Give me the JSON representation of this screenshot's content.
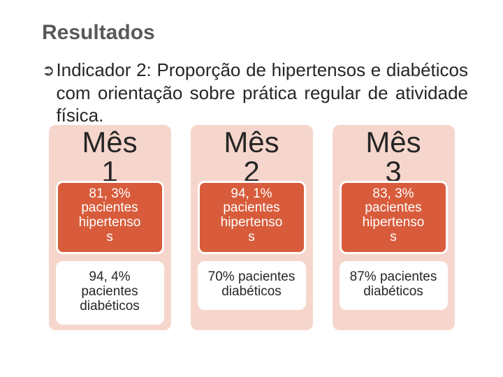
{
  "title": "Resultados",
  "bullet_text": "Indicador 2: Proporção de hipertensos e diabéticos com orientação sobre prática regular de atividade física.",
  "columns": [
    {
      "month": "Mês 1",
      "hipertensos_pct": "81, 3%",
      "hipertensos_label": "pacientes hipertensos",
      "diabeticos_pct": "94, 4%",
      "diabeticos_label": "pacientes diabéticos"
    },
    {
      "month": "Mês 2",
      "hipertensos_pct": "94, 1%",
      "hipertensos_label": "pacientes hipertensos",
      "diabeticos_pct": "70%",
      "diabeticos_label": "pacientes diabéticos"
    },
    {
      "month": "Mês 3",
      "hipertensos_pct": "83, 3%",
      "hipertensos_label": "pacientes hipertensos",
      "diabeticos_pct": "87%",
      "diabeticos_label": "pacientes diabéticos"
    }
  ],
  "colors": {
    "title_color": "#595959",
    "text_color": "#262626",
    "col_bg": "#f6d6cc",
    "orange_box": "#d85c3b",
    "white": "#ffffff"
  },
  "typography": {
    "title_fontsize": 30,
    "bullet_fontsize": 26,
    "month_fontsize": 42,
    "box_fontsize": 19
  }
}
